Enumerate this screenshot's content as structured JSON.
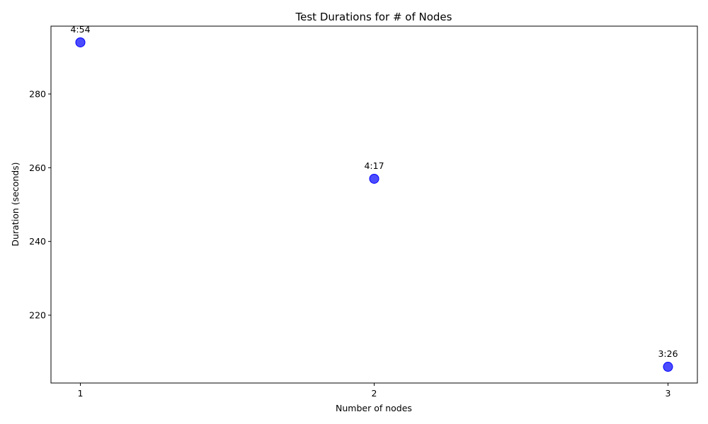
{
  "chart_data": {
    "type": "scatter",
    "title": "Test Durations for # of Nodes",
    "xlabel": "Number of nodes",
    "ylabel": "Duration (seconds)",
    "x": [
      1,
      2,
      3
    ],
    "y": [
      294,
      257,
      206
    ],
    "point_labels": [
      "4:54",
      "4:17",
      "3:26"
    ],
    "xticks": [
      "1",
      "2",
      "3"
    ],
    "yticks": [
      220,
      240,
      260,
      280
    ],
    "xlim": [
      0.9,
      3.1
    ],
    "ylim": [
      201.6,
      298.4
    ],
    "marker_color": "#0000ff",
    "marker_opacity": 0.7,
    "grid": false,
    "legend": "none"
  }
}
